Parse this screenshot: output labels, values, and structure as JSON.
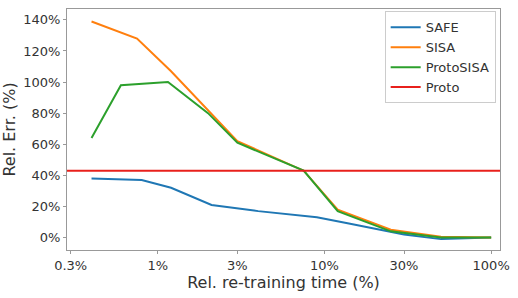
{
  "chart_data": {
    "type": "line",
    "x_label": "Rel. re-training time (%)",
    "y_label": "Rel. Err. (%)",
    "log": "x",
    "grid": false,
    "legend": "top right",
    "xlim": [
      0.285,
      113
    ],
    "ylim": [
      -8,
      147
    ],
    "xticks": [
      {
        "value": 0.3,
        "label": "0.3%"
      },
      {
        "value": 1,
        "label": "1%"
      },
      {
        "value": 3,
        "label": "3%"
      },
      {
        "value": 10,
        "label": "10%"
      },
      {
        "value": 30,
        "label": "30%"
      },
      {
        "value": 100,
        "label": "100%"
      }
    ],
    "yticks": [
      {
        "value": 0,
        "label": "0%"
      },
      {
        "value": 20,
        "label": "20%"
      },
      {
        "value": 40,
        "label": "40%"
      },
      {
        "value": 60,
        "label": "60%"
      },
      {
        "value": 80,
        "label": "80%"
      },
      {
        "value": 100,
        "label": "100%"
      },
      {
        "value": 120,
        "label": "120%"
      },
      {
        "value": 140,
        "label": "140%"
      }
    ],
    "series": [
      {
        "name": "SAFE",
        "color": "#1f77b4",
        "x": [
          0.4,
          0.8,
          1.2,
          2.1,
          4,
          9,
          14,
          30,
          50,
          100
        ],
        "values": [
          38,
          37,
          32,
          21,
          17,
          13,
          9,
          2,
          -1,
          0
        ]
      },
      {
        "name": "SISA",
        "color": "#ff7f0e",
        "x": [
          0.4,
          0.75,
          1.2,
          2,
          3,
          7.5,
          12,
          25,
          50,
          100
        ],
        "values": [
          139,
          128,
          107,
          82,
          62,
          43,
          18,
          5,
          0.5,
          0
        ]
      },
      {
        "name": "ProtoSISA",
        "color": "#2ca02c",
        "x": [
          0.4,
          0.6,
          1.15,
          2,
          3,
          7.5,
          12,
          25,
          50,
          100
        ],
        "values": [
          64,
          98,
          100,
          80,
          61,
          43,
          17,
          4,
          0,
          0
        ]
      },
      {
        "name": "Proto",
        "color": "#e8201c",
        "x": [
          0.285,
          113
        ],
        "values": [
          43,
          43
        ]
      }
    ]
  }
}
